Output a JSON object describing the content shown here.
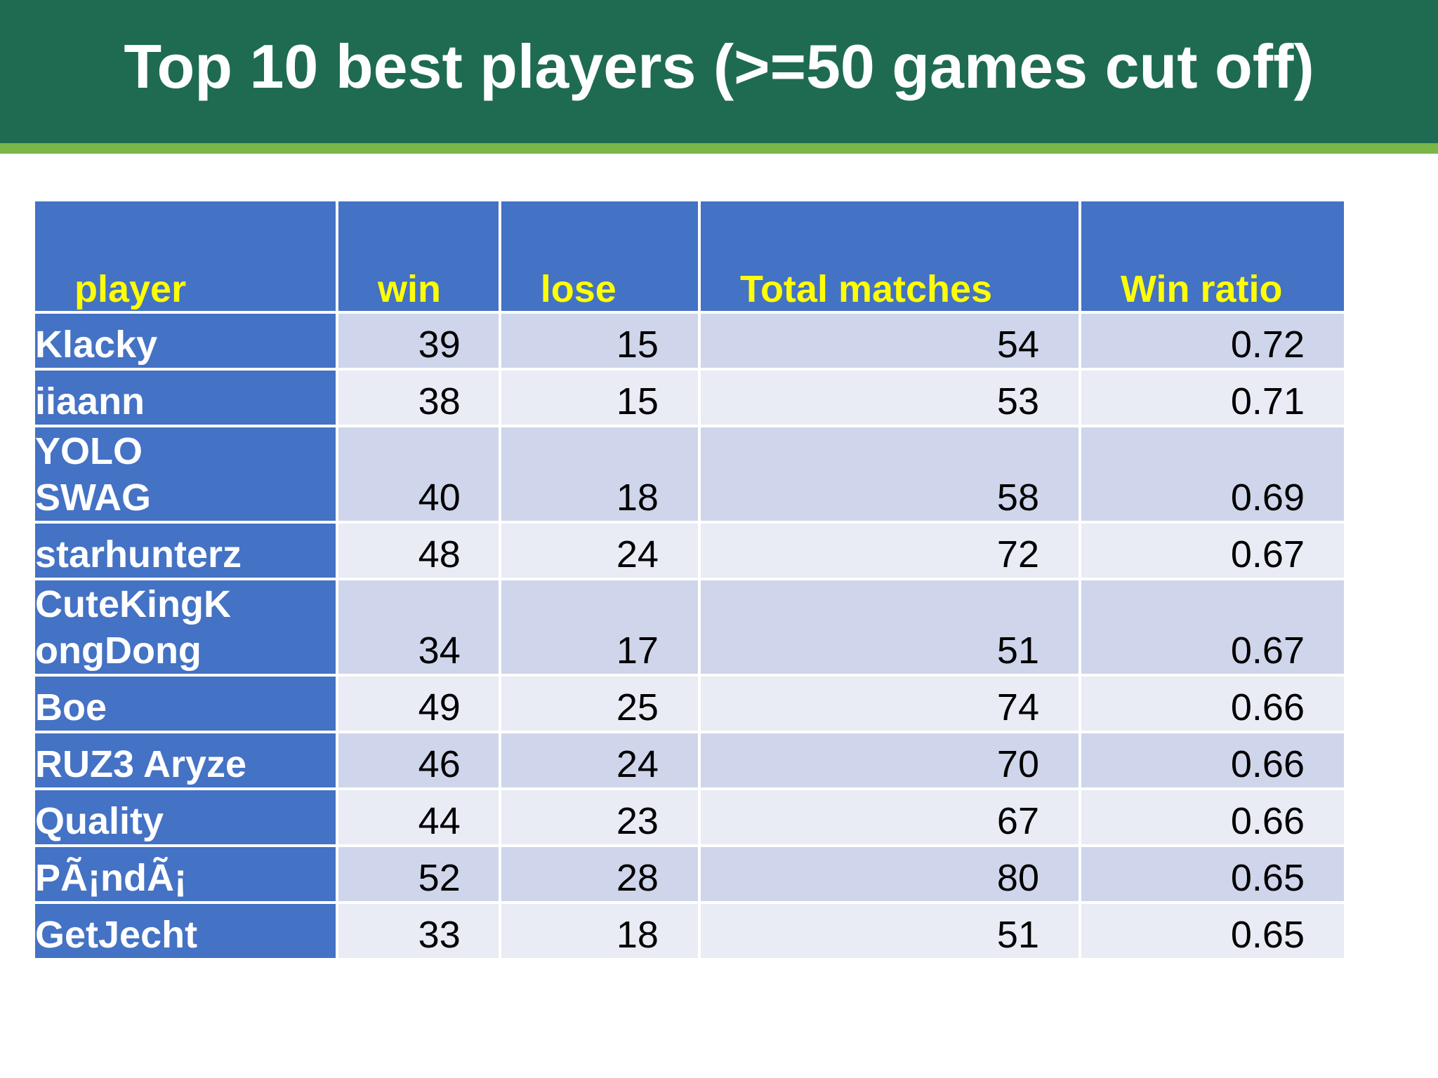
{
  "slide": {
    "title": "Top 10 best players (>=50 games cut off)"
  },
  "table": {
    "columns": [
      "player",
      "win",
      "lose",
      "Total matches",
      "Win ratio"
    ],
    "rows": [
      {
        "player": "Klacky",
        "win": "39",
        "lose": "15",
        "total": "54",
        "ratio": "0.72"
      },
      {
        "player": "iiaann",
        "win": "38",
        "lose": "15",
        "total": "53",
        "ratio": "0.71"
      },
      {
        "player": "YOLO\nSWAG",
        "win": "40",
        "lose": "18",
        "total": "58",
        "ratio": "0.69"
      },
      {
        "player": "starhunterz",
        "win": "48",
        "lose": "24",
        "total": "72",
        "ratio": "0.67"
      },
      {
        "player": "CuteKingK\nongDong",
        "win": "34",
        "lose": "17",
        "total": "51",
        "ratio": "0.67"
      },
      {
        "player": "Boe",
        "win": "49",
        "lose": "25",
        "total": "74",
        "ratio": "0.66"
      },
      {
        "player": "RUZ3 Aryze",
        "win": "46",
        "lose": "24",
        "total": "70",
        "ratio": "0.66"
      },
      {
        "player": "Quality",
        "win": "44",
        "lose": "23",
        "total": "67",
        "ratio": "0.66"
      },
      {
        "player": "PÃ¡ndÃ¡",
        "win": "52",
        "lose": "28",
        "total": "80",
        "ratio": "0.65"
      },
      {
        "player": "GetJecht",
        "win": "33",
        "lose": "18",
        "total": "51",
        "ratio": "0.65"
      }
    ]
  },
  "colors": {
    "title_bar": "#1e6b52",
    "accent_line": "#7ab648",
    "header_fill": "#4472c4",
    "header_text": "#ffff00",
    "row_odd": "#cfd5ea",
    "row_even": "#e9ebf5"
  }
}
